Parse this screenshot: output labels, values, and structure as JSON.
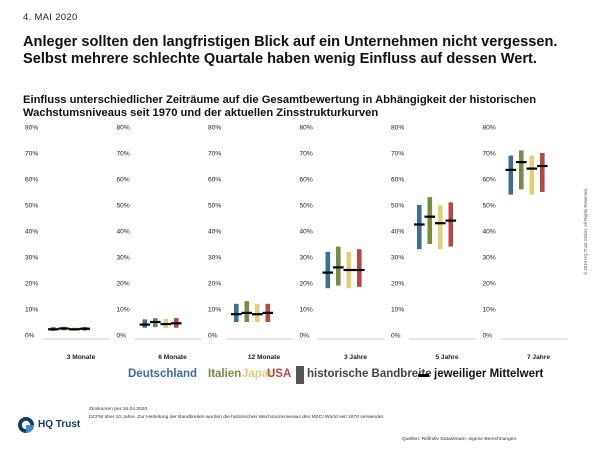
{
  "header": {
    "date": "4. MAI 2020",
    "headline_1": "Anleger sollten den langfristigen Blick auf ein Unternehmen nicht vergessen.",
    "headline_2": "Selbst mehrere schlechte Quartale haben wenig Einfluss auf dessen Wert.",
    "subtitle_1": "Einfluss unterschiedlicher Zeiträume auf die Gesamtbewertung in Abhängigkeit der historischen",
    "subtitle_2": "Wachstumsniveaus seit 1970 und der aktuellen Zinsstrukturkurven"
  },
  "chart_data": {
    "type": "bar",
    "title": "Einfluss unterschiedlicher Zeiträume auf die Gesamtbewertung in Abhängigkeit der historischen Wachstumsniveaus seit 1970 und der aktuellen Zinsstrukturkurven",
    "ylim": [
      0,
      80
    ],
    "y_ticks": [
      "0%",
      "10%",
      "20%",
      "30%",
      "40%",
      "50%",
      "60%",
      "70%",
      "80%"
    ],
    "grid": false,
    "legend_position": "bottom",
    "categories": [
      "3 Monate",
      "6 Monate",
      "12 Monate",
      "3 Jahre",
      "5 Jahre",
      "7 Jahre"
    ],
    "series": [
      {
        "name": "Deutschland",
        "color": "#3d6f93",
        "low": [
          1.6,
          2.8,
          5.0,
          18.0,
          33.0,
          54.0
        ],
        "high": [
          3.0,
          6.0,
          12.0,
          32.0,
          50.0,
          69.0
        ],
        "mean": [
          2.2,
          4.0,
          8.0,
          24.0,
          42.5,
          63.5
        ]
      },
      {
        "name": "Italien",
        "color": "#7b8a42",
        "low": [
          1.8,
          3.0,
          5.0,
          19.0,
          35.0,
          56.0
        ],
        "high": [
          3.2,
          6.5,
          13.0,
          34.0,
          53.0,
          71.0
        ],
        "mean": [
          2.5,
          5.0,
          8.5,
          26.0,
          45.5,
          66.5
        ]
      },
      {
        "name": "Japan",
        "color": "#e0d07a",
        "low": [
          1.6,
          2.6,
          5.0,
          18.0,
          33.0,
          54.0
        ],
        "high": [
          2.9,
          6.2,
          12.0,
          32.0,
          50.0,
          69.0
        ],
        "mean": [
          2.2,
          4.2,
          8.0,
          25.0,
          43.0,
          64.0
        ]
      },
      {
        "name": "USA",
        "color": "#b24a43",
        "low": [
          1.7,
          2.8,
          5.0,
          18.5,
          34.0,
          55.0
        ],
        "high": [
          3.1,
          6.5,
          12.0,
          33.0,
          51.0,
          70.0
        ],
        "mean": [
          2.4,
          4.5,
          8.5,
          25.0,
          44.0,
          65.0
        ]
      }
    ],
    "mean_color": "#000000"
  },
  "legend": {
    "deutschland": "Deutschland",
    "italien": "Italien",
    "japan": "Japan",
    "usa": "USA",
    "range_label": "historische Bandbreite",
    "range_color": "#555555",
    "mean_label": "jeweiliger Mittelwert"
  },
  "footer": {
    "copyright": "© 2019 HQ Trust GmbH; All Rights Reserved.",
    "logo_text": "HQ Trust",
    "note_1": "Zinskurven per 16.04.2020",
    "note_2": "DCFM über 10 Jahre. Zur Herleitung der Bandbreiten wurden die historischen Wachstumsniveaus des MSCI World seit 1970 verwendet.",
    "sources": "Quellen: Refinitiv Datastream, eigene Berechnungen."
  }
}
